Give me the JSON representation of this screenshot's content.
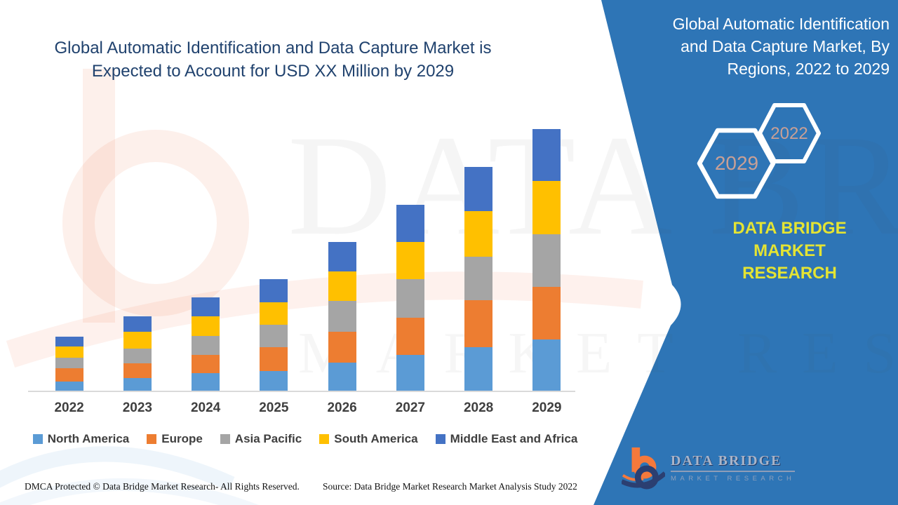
{
  "header": {
    "title_line1": "Global Automatic Identification and Data Capture Market is",
    "title_line2": "Expected to Account for USD XX Million by 2029",
    "title_color": "#20426E"
  },
  "side_panel": {
    "bg_color": "#2E75B6",
    "heading_line1": "Global Automatic Identification",
    "heading_line2": "and Data Capture Market, By",
    "heading_line3": "Regions, 2022 to 2029",
    "hexagon_back_label": "2022",
    "hexagon_front_label": "2029",
    "hexagon_label_color": "#C9A096",
    "brand_line1": "DATA BRIDGE MARKET",
    "brand_line2": "RESEARCH",
    "brand_color": "#E4E433"
  },
  "chart_data": {
    "type": "bar",
    "stacked": true,
    "title": "Global Automatic Identification and Data Capture Market, By Regions, 2022 to 2029",
    "categories": [
      "2022",
      "2023",
      "2024",
      "2025",
      "2026",
      "2027",
      "2028",
      "2029"
    ],
    "series": [
      {
        "name": "North America",
        "color": "#5B9BD5",
        "values": [
          14,
          19,
          26,
          29,
          41,
          52,
          63,
          74
        ]
      },
      {
        "name": "Europe",
        "color": "#ED7D31",
        "values": [
          19,
          21,
          26,
          34,
          44,
          53,
          67,
          75
        ]
      },
      {
        "name": "Asia Pacific",
        "color": "#A5A5A5",
        "values": [
          15,
          21,
          27,
          32,
          44,
          55,
          62,
          75
        ]
      },
      {
        "name": "South America",
        "color": "#FFC000",
        "values": [
          16,
          24,
          28,
          32,
          42,
          53,
          65,
          76
        ]
      },
      {
        "name": "Middle East and Africa",
        "color": "#4472C4",
        "values": [
          14,
          22,
          27,
          33,
          42,
          53,
          63,
          74
        ]
      }
    ],
    "totals": [
      78,
      107,
      134,
      160,
      213,
      266,
      320,
      374
    ],
    "ylabel": "",
    "xlabel": "",
    "value_axis_visible": false,
    "units": "relative index (y-axis unlabeled, values estimated from bar heights)",
    "grid": false,
    "legend_position": "bottom"
  },
  "watermark": {
    "line1": "DATA BRIDGE",
    "line2": "MARKET RESEARCH"
  },
  "footer": {
    "dmca": "DMCA Protected © Data Bridge Market Research- All Rights Reserved.",
    "source": "Source: Data Bridge Market Research Market Analysis Study 2022"
  },
  "logo": {
    "wordmark": "DATA BRIDGE",
    "subtext": "MARKET RESEARCH"
  }
}
